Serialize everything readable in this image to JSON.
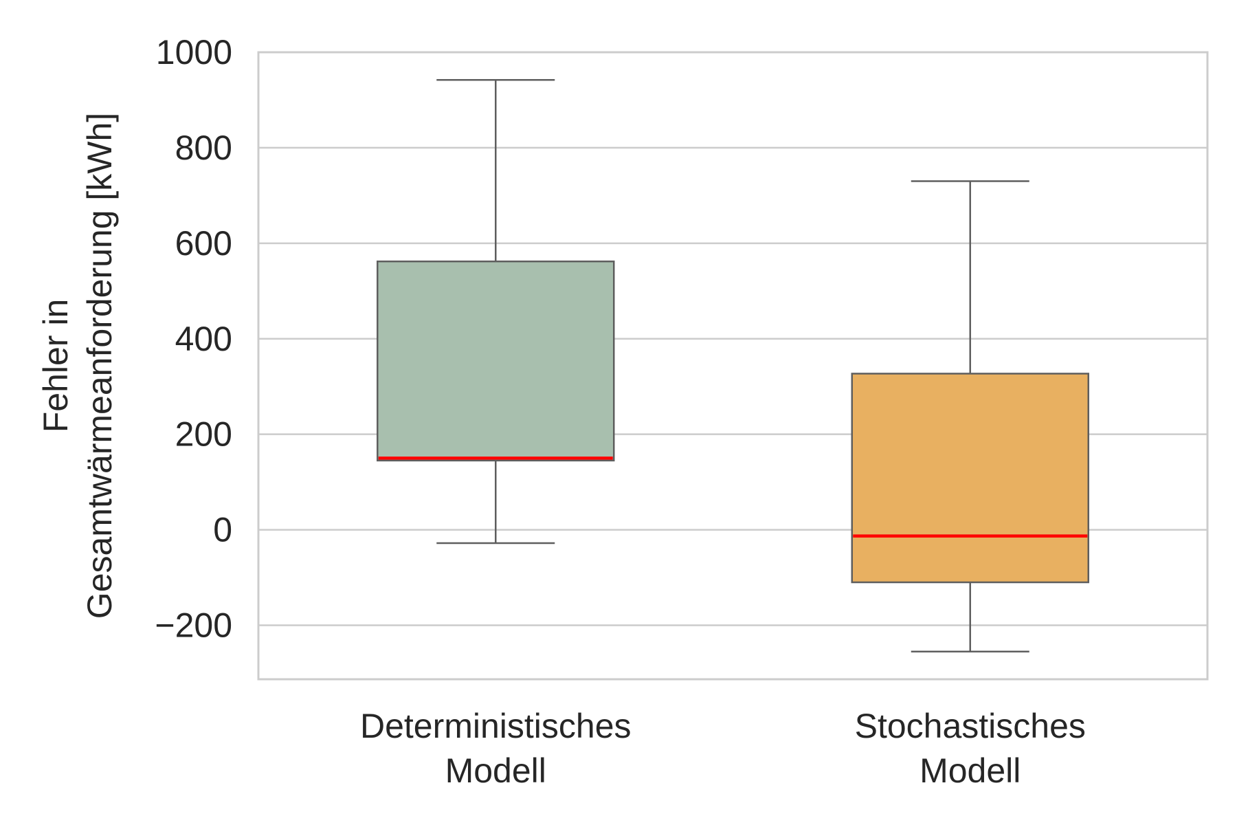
{
  "chart_data": {
    "type": "box",
    "ylabel_lines": [
      "Fehler in",
      "Gesamtwärmeanforderung [kWh]"
    ],
    "ylim": [
      -313,
      1000
    ],
    "yticks": [
      -200,
      0,
      200,
      400,
      600,
      800,
      1000
    ],
    "ytick_labels": [
      "−200",
      "0",
      "200",
      "400",
      "600",
      "800",
      "1000"
    ],
    "grid": true,
    "categories": [
      {
        "lines": [
          "Deterministisches",
          "Modell"
        ]
      },
      {
        "lines": [
          "Stochastisches",
          "Modell"
        ]
      }
    ],
    "boxes": [
      {
        "whisker_low": -28,
        "q1": 145,
        "median": 150,
        "q3": 562,
        "whisker_high": 942,
        "color": "#a8bfae"
      },
      {
        "whisker_low": -255,
        "q1": -110,
        "median": -13,
        "q3": 327,
        "whisker_high": 730,
        "color": "#e8b061"
      }
    ],
    "median_color": "#ff0000",
    "line_color": "#5e5e5e",
    "grid_color": "#cccccc"
  }
}
